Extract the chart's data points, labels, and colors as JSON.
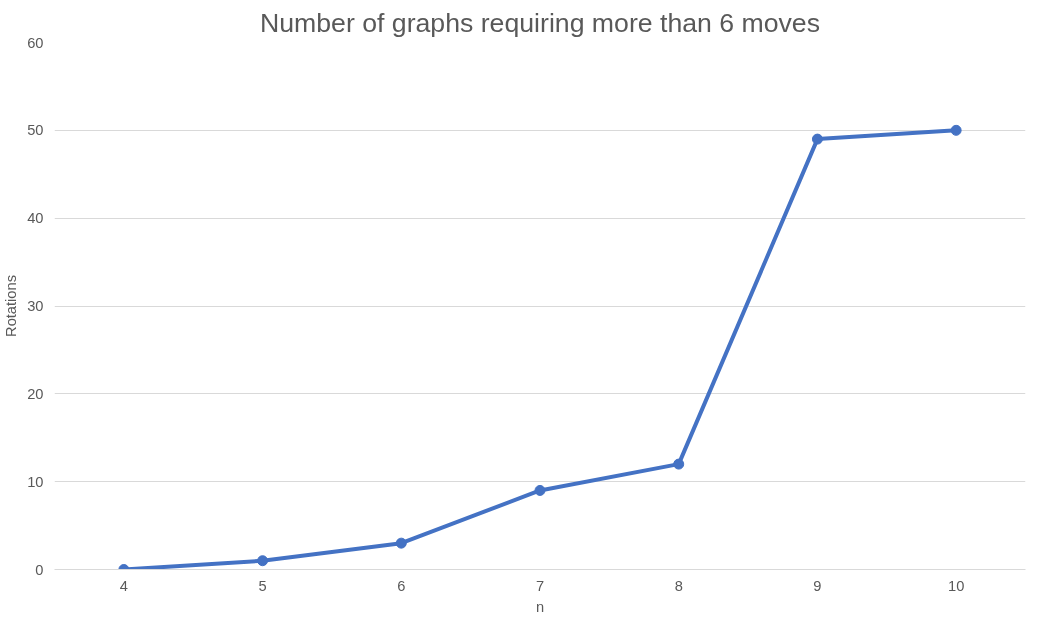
{
  "chart_data": {
    "type": "line",
    "title": "Number of graphs requiring more than 6 moves",
    "xlabel": "n",
    "ylabel": "Rotations",
    "categories": [
      "4",
      "5",
      "6",
      "7",
      "8",
      "9",
      "10"
    ],
    "series": [
      {
        "color": "#4472c4",
        "values": [
          0,
          1,
          3,
          9,
          12,
          49,
          50
        ]
      }
    ],
    "ylim": [
      0,
      60
    ],
    "yticks": [
      0,
      10,
      20,
      30,
      40,
      50,
      60
    ],
    "grid": "y",
    "marker": "circle",
    "line_style": "solid"
  }
}
